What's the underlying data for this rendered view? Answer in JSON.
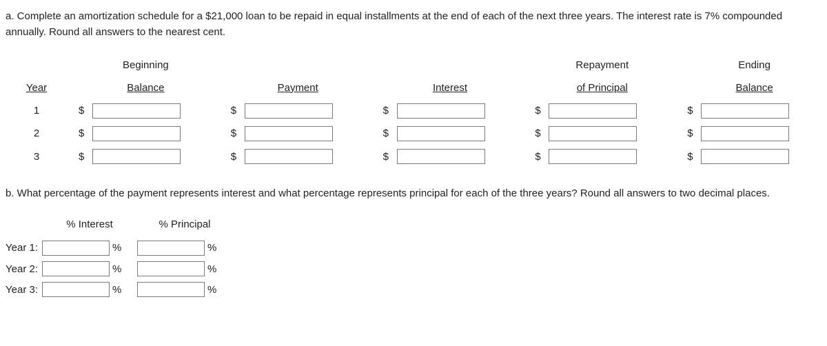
{
  "partA": {
    "text": "a. Complete an amortization schedule for a $21,000 loan to be repaid in equal installments at the end of each of the next three years. The interest rate is 7% compounded annually. Round all answers to the nearest cent."
  },
  "headers": {
    "beginning_top": "Beginning",
    "balance": "Balance",
    "year": "Year",
    "payment": "Payment",
    "interest": "Interest",
    "repayment_top": "Repayment",
    "of_principal": "of Principal",
    "ending_top": "Ending",
    "ending_balance": "Balance",
    "currency": "$"
  },
  "rows": {
    "y1": "1",
    "y2": "2",
    "y3": "3"
  },
  "partB": {
    "text": "b. What percentage of the payment represents interest and what percentage represents principal for each of the three years? Round all answers to two decimal places."
  },
  "pct": {
    "header_interest": "% Interest",
    "header_principal": "% Principal",
    "year1": "Year 1:",
    "year2": "Year 2:",
    "year3": "Year 3:",
    "suffix": "%"
  }
}
